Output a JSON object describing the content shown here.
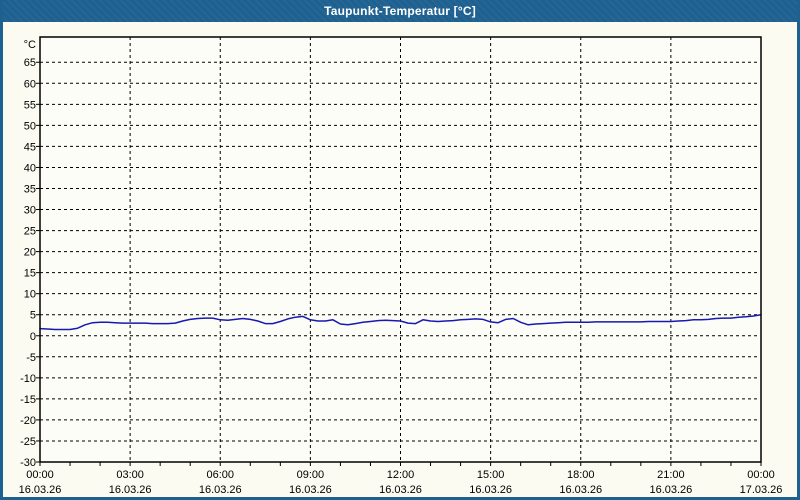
{
  "window": {
    "title": "Taupunkt-Temperatur [°C]"
  },
  "colors": {
    "frame": "#1E6090",
    "title_text": "#FFFFFF",
    "background": "#FBFBF2",
    "plot_background": "#FDFDF8",
    "grid": "#000000",
    "axis": "#000000",
    "text": "#000000",
    "line": "#1818B2"
  },
  "chart_data": {
    "type": "line",
    "title": "Taupunkt-Temperatur [°C]",
    "ylabel": "°C",
    "unit_label": "°C",
    "grid": "dashed",
    "legend": "none",
    "xlim_hours": [
      0,
      24
    ],
    "ylim": [
      -30,
      71
    ],
    "y_ticks": [
      65,
      60,
      55,
      50,
      45,
      40,
      35,
      30,
      25,
      20,
      15,
      10,
      5,
      0,
      -5,
      -10,
      -15,
      -20,
      -25,
      -30
    ],
    "x_major_ticks": [
      {
        "hours": 0,
        "time": "00:00",
        "date": "16.03.26"
      },
      {
        "hours": 3,
        "time": "03:00",
        "date": "16.03.26"
      },
      {
        "hours": 6,
        "time": "06:00",
        "date": "16.03.26"
      },
      {
        "hours": 9,
        "time": "09:00",
        "date": "16.03.26"
      },
      {
        "hours": 12,
        "time": "12:00",
        "date": "16.03.26"
      },
      {
        "hours": 15,
        "time": "15:00",
        "date": "16.03.26"
      },
      {
        "hours": 18,
        "time": "18:00",
        "date": "16.03.26"
      },
      {
        "hours": 21,
        "time": "21:00",
        "date": "16.03.26"
      },
      {
        "hours": 24,
        "time": "00:00",
        "date": "17.03.26"
      }
    ],
    "x_minor_tick_hours": 1,
    "series": [
      {
        "name": "Taupunkt-Temperatur",
        "color": "#1818B2",
        "x_start_hours": 0,
        "x_step_hours": 0.25,
        "values": [
          1.7,
          1.6,
          1.5,
          1.5,
          1.5,
          1.8,
          2.6,
          3.1,
          3.2,
          3.2,
          3.1,
          3.0,
          3.0,
          3.0,
          3.0,
          2.9,
          2.9,
          2.9,
          3.0,
          3.5,
          3.9,
          4.1,
          4.2,
          4.2,
          3.8,
          3.7,
          3.9,
          4.1,
          3.9,
          3.5,
          2.9,
          2.9,
          3.4,
          4.0,
          4.4,
          4.6,
          3.8,
          3.5,
          3.5,
          3.8,
          2.8,
          2.6,
          2.9,
          3.2,
          3.4,
          3.6,
          3.7,
          3.6,
          3.5,
          3.0,
          2.9,
          3.8,
          3.5,
          3.4,
          3.5,
          3.6,
          3.8,
          3.9,
          4.0,
          3.9,
          3.3,
          3.1,
          3.9,
          4.1,
          3.2,
          2.6,
          2.8,
          2.9,
          3.0,
          3.1,
          3.2,
          3.2,
          3.2,
          3.2,
          3.3,
          3.3,
          3.3,
          3.3,
          3.3,
          3.3,
          3.3,
          3.4,
          3.4,
          3.4,
          3.4,
          3.5,
          3.6,
          3.8,
          3.8,
          3.9,
          4.1,
          4.2,
          4.2,
          4.4,
          4.5,
          4.7,
          5.0
        ]
      }
    ]
  }
}
